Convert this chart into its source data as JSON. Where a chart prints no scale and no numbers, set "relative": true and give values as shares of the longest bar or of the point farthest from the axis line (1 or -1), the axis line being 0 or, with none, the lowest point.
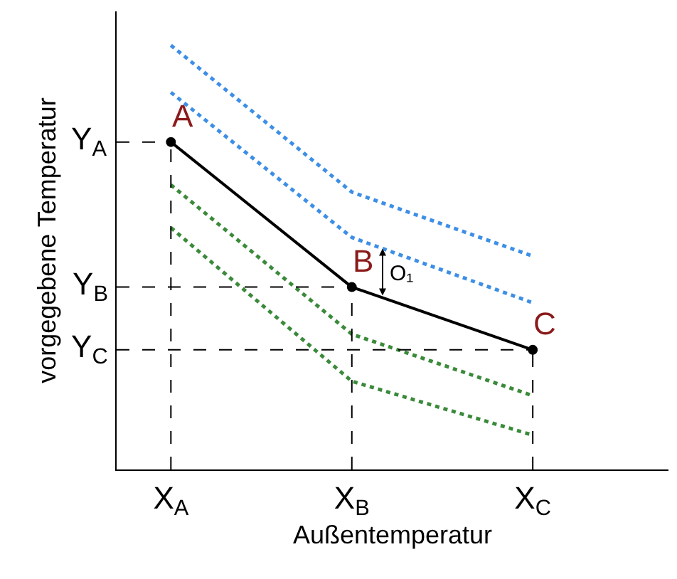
{
  "chart_data": {
    "type": "line",
    "relative": true,
    "xlabel": "Außentemperatur",
    "ylabel": "vorgegebene Temperatur",
    "categories": [
      "X$_{A}$",
      "X$_{B}$",
      "X$_{C}$"
    ],
    "series": [
      {
        "color": "#000000",
        "values": [
          0.772,
          0.43,
          0.282
        ],
        "marker": "circle",
        "line_style": "solid"
      },
      {
        "color": "#3d8fe6",
        "values": [
          1,
          0.654,
          0.503
        ],
        "marker": "none",
        "line_style": "dotted"
      },
      {
        "color": "#3d8fe6",
        "values": [
          0.889,
          0.547,
          0.393
        ],
        "marker": "none",
        "line_style": "dotted"
      },
      {
        "color": "#3a8a3a",
        "values": [
          0.671,
          0.319,
          0.174
        ],
        "marker": "none",
        "line_style": "dotted"
      },
      {
        "color": "#3a8a3a",
        "values": [
          0.57,
          0.208,
          0.081
        ],
        "marker": "none",
        "line_style": "dotted"
      }
    ],
    "ref_lines": [
      {
        "axis": "y",
        "value": 0.772,
        "label": "Y$_{A}$",
        "line_style": "dashed"
      },
      {
        "axis": "y",
        "value": 0.43,
        "label": "Y$_{B}$",
        "line_style": "dashed"
      },
      {
        "axis": "y",
        "value": 0.282,
        "label": "Y$_{C}$",
        "line_style": "dashed"
      }
    ],
    "annotations": [
      {
        "text": "A",
        "x": "X$_{A}$",
        "y": 0.772
      },
      {
        "text": "B",
        "x": "X$_{B}$",
        "y": 0.43
      },
      {
        "text": "C",
        "x": "X$_{C}$",
        "y": 0.282
      },
      "O₁"
    ],
    "grid": "x"
  }
}
